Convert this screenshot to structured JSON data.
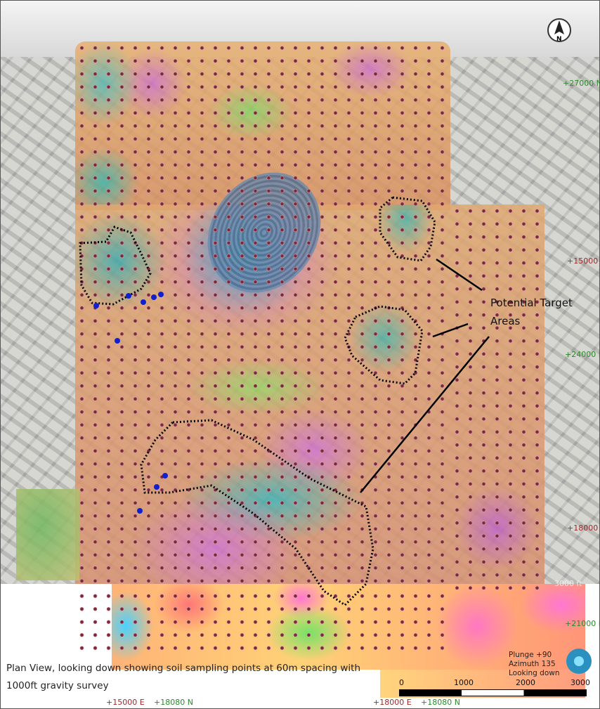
{
  "map": {
    "caption_line1": "Plan View, looking down showing soil sampling points at 60m spacing with",
    "caption_line2": "1000ft gravity survey",
    "annotation_line1": "Potential Target",
    "annotation_line2": "Areas",
    "view": {
      "plunge": "Plunge +90",
      "azimuth": "Azimuth 135",
      "looking": "Looking down"
    },
    "north_label": "N",
    "grid_labels": {
      "n27000": "+27000 N",
      "e15000": "+15000 E",
      "n24000": "+24000 N",
      "e18000": "+18000 E",
      "n21000": "+21000 N",
      "bottom_left_e": "+15000 E",
      "bottom_left_n": "+18080 N",
      "bottom_right_e": "+18000 E",
      "bottom_right_n": "+18080 N",
      "ft3000": "3000 ft"
    },
    "scale_bar": {
      "ticks": [
        "0",
        "1000",
        "2000",
        "3000"
      ]
    },
    "colors": {
      "sample_points": "#7a2a3a",
      "drill_points": "#1020d0",
      "north_grid": "#2a8a2a",
      "east_grid": "#9a2a2a"
    }
  }
}
